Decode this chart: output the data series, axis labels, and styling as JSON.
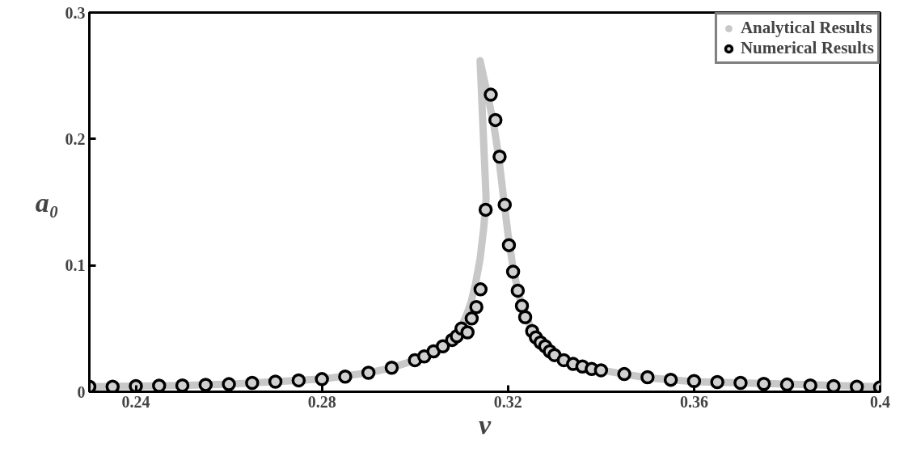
{
  "chart_data": {
    "type": "line",
    "xlabel": "ν",
    "ylabel": "a₀",
    "xlim": [
      0.23,
      0.4
    ],
    "ylim": [
      0,
      0.3
    ],
    "xticks": [
      0.24,
      0.28,
      0.32,
      0.36,
      0.4
    ],
    "yticks": [
      0,
      0.1,
      0.2,
      0.3
    ],
    "grid": false,
    "legend": "top right",
    "series": [
      {
        "name": "Analytical Results",
        "color": "#c8c8c8",
        "marker": "none",
        "x": [
          0.23,
          0.24,
          0.25,
          0.26,
          0.27,
          0.28,
          0.29,
          0.295,
          0.3,
          0.303,
          0.306,
          0.308,
          0.31,
          0.311,
          0.312,
          0.313,
          0.314,
          0.3148,
          0.3153,
          0.314,
          0.315,
          0.316,
          0.317,
          0.318,
          0.319,
          0.32,
          0.321,
          0.322,
          0.323,
          0.325,
          0.328,
          0.331,
          0.335,
          0.34,
          0.35,
          0.36,
          0.37,
          0.38,
          0.39,
          0.4
        ],
        "values": [
          0.004,
          0.0045,
          0.005,
          0.006,
          0.008,
          0.01,
          0.015,
          0.019,
          0.025,
          0.03,
          0.036,
          0.043,
          0.052,
          0.06,
          0.07,
          0.085,
          0.105,
          0.13,
          0.153,
          0.262,
          0.245,
          0.228,
          0.21,
          0.186,
          0.155,
          0.125,
          0.1,
          0.082,
          0.068,
          0.05,
          0.036,
          0.027,
          0.021,
          0.017,
          0.011,
          0.008,
          0.007,
          0.006,
          0.005,
          0.004
        ]
      },
      {
        "name": "Numerical Results",
        "type": "scatter",
        "color": "#000000",
        "marker": "circle",
        "x": [
          0.23,
          0.235,
          0.24,
          0.245,
          0.25,
          0.255,
          0.26,
          0.265,
          0.27,
          0.275,
          0.28,
          0.285,
          0.29,
          0.295,
          0.3,
          0.302,
          0.304,
          0.306,
          0.308,
          0.309,
          0.31,
          0.3113,
          0.3122,
          0.3132,
          0.3141,
          0.3152,
          0.3163,
          0.3173,
          0.3182,
          0.3193,
          0.3202,
          0.3211,
          0.3221,
          0.323,
          0.3237,
          0.3252,
          0.326,
          0.327,
          0.328,
          0.329,
          0.33,
          0.332,
          0.334,
          0.336,
          0.338,
          0.34,
          0.345,
          0.35,
          0.355,
          0.36,
          0.365,
          0.37,
          0.375,
          0.38,
          0.385,
          0.39,
          0.395,
          0.4
        ],
        "values": [
          0.004,
          0.004,
          0.0045,
          0.0048,
          0.005,
          0.0055,
          0.006,
          0.007,
          0.008,
          0.009,
          0.01,
          0.012,
          0.015,
          0.019,
          0.025,
          0.028,
          0.032,
          0.036,
          0.041,
          0.044,
          0.05,
          0.047,
          0.058,
          0.067,
          0.081,
          0.144,
          0.235,
          0.215,
          0.186,
          0.148,
          0.116,
          0.095,
          0.08,
          0.068,
          0.059,
          0.048,
          0.043,
          0.039,
          0.036,
          0.032,
          0.029,
          0.025,
          0.022,
          0.02,
          0.018,
          0.017,
          0.014,
          0.0115,
          0.0095,
          0.0085,
          0.0077,
          0.007,
          0.0062,
          0.0057,
          0.005,
          0.0045,
          0.004,
          0.0035
        ]
      }
    ]
  }
}
